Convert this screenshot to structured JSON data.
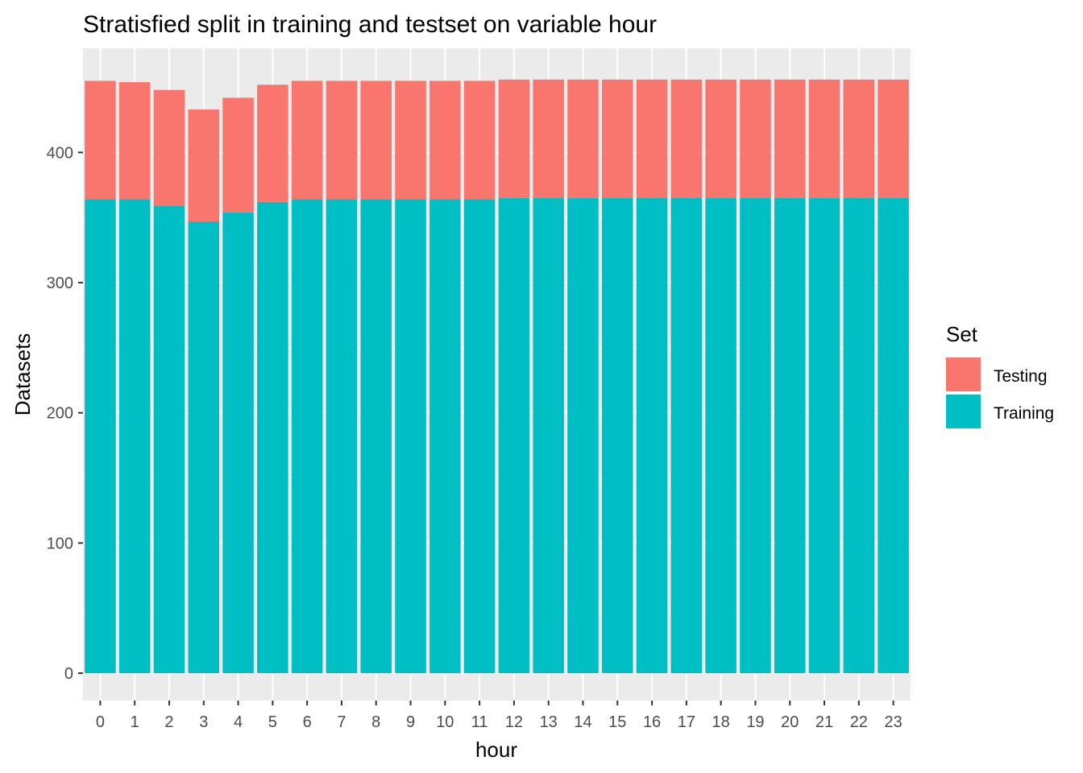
{
  "chart_data": {
    "type": "bar",
    "stacked": true,
    "title": "Stratisfied split in training and testset on variable hour",
    "xlabel": "hour",
    "ylabel": "Datasets",
    "categories": [
      "0",
      "1",
      "2",
      "3",
      "4",
      "5",
      "6",
      "7",
      "8",
      "9",
      "10",
      "11",
      "12",
      "13",
      "14",
      "15",
      "16",
      "17",
      "18",
      "19",
      "20",
      "21",
      "22",
      "23"
    ],
    "series": [
      {
        "name": "Training",
        "color": "#00BFC4",
        "values": [
          364,
          364,
          359,
          347,
          354,
          362,
          364,
          364,
          364,
          364,
          364,
          364,
          365,
          365,
          365,
          365,
          365,
          365,
          365,
          365,
          365,
          365,
          365,
          365
        ]
      },
      {
        "name": "Testing",
        "color": "#F8766D",
        "values": [
          91,
          90,
          89,
          86,
          88,
          90,
          91,
          91,
          91,
          91,
          91,
          91,
          91,
          91,
          91,
          91,
          91,
          91,
          91,
          91,
          91,
          91,
          91,
          91
        ]
      }
    ],
    "yticks": [
      0,
      100,
      200,
      300,
      400
    ],
    "ylim": [
      -21,
      480
    ],
    "grid": true,
    "panel_background": "#EBEBEB",
    "legend": {
      "title": "Set",
      "position": "right",
      "entries": [
        {
          "label": "Testing",
          "color": "#F8766D"
        },
        {
          "label": "Training",
          "color": "#00BFC4"
        }
      ]
    }
  }
}
